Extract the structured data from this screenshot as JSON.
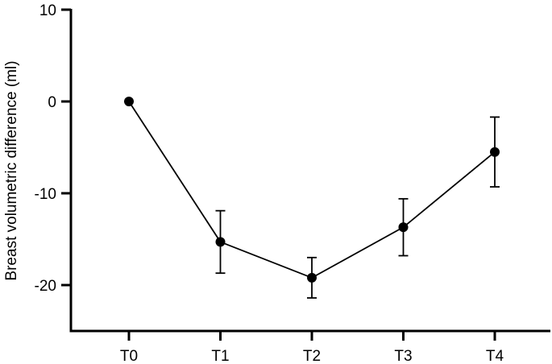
{
  "chart_data": {
    "type": "line",
    "categories": [
      "T0",
      "T1",
      "T2",
      "T3",
      "T4"
    ],
    "series": [
      {
        "values": [
          0,
          -15.3,
          -19.2,
          -13.7,
          -5.5
        ],
        "error": [
          0,
          3.4,
          2.2,
          3.1,
          3.8
        ]
      }
    ],
    "ylabel": "Breast volumetric difference (ml)",
    "xlabel": "",
    "ylim": [
      -25,
      10
    ],
    "yticks": [
      10,
      0,
      -10,
      -20
    ],
    "grid": false,
    "marker": "filled-circle",
    "color": "#000000"
  }
}
